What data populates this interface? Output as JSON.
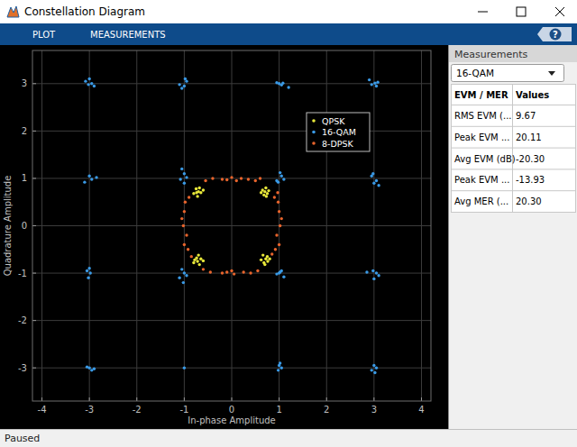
{
  "window": {
    "title": "Constellation Diagram",
    "status": "Paused"
  },
  "toolbar": {
    "tabs": [
      "PLOT",
      "MEASUREMENTS"
    ],
    "help": "?"
  },
  "measurements": {
    "title": "Measurements",
    "selected": "16-QAM",
    "columns": [
      "EVM / MER",
      "Values"
    ],
    "rows": [
      [
        "RMS EVM (...",
        "9.67"
      ],
      [
        "Peak EVM ...",
        "20.11"
      ],
      [
        "Avg EVM (dB)",
        "-20.30"
      ],
      [
        "Peak EVM ...",
        "-13.93"
      ],
      [
        "Avg MER (...",
        "20.30"
      ]
    ]
  },
  "chart_data": {
    "type": "scatter",
    "x_label": "In-phase Amplitude",
    "y_label": "Quadrature Amplitude",
    "xlim": [
      -4.2,
      4.2
    ],
    "ylim": [
      -3.7,
      3.7
    ],
    "xticks": [
      -4,
      -3,
      -2,
      -1,
      0,
      1,
      2,
      3,
      4
    ],
    "yticks": [
      -3,
      -2,
      -1,
      0,
      1,
      2,
      3
    ],
    "grid": true,
    "legend": "upper right",
    "marker": "circle",
    "series": [
      {
        "name": "QPSK",
        "color": "#e8e83a",
        "x": [
          0.7,
          0.65,
          0.75,
          0.72,
          0.68,
          0.78,
          0.62,
          0.73,
          -0.7,
          -0.75,
          -0.65,
          -0.72,
          -0.8,
          -0.68,
          -0.6,
          -0.74,
          0.72,
          0.68,
          0.75,
          0.62,
          0.8,
          0.7,
          0.66,
          0.76,
          -0.72,
          -0.65,
          -0.78,
          -0.7,
          -0.68,
          -0.8,
          -0.6,
          -0.74
        ],
        "values": [
          0.72,
          0.75,
          0.68,
          0.8,
          0.65,
          0.74,
          0.7,
          0.62,
          0.72,
          0.78,
          0.7,
          0.62,
          0.68,
          0.8,
          0.75,
          0.7,
          -0.7,
          -0.78,
          -0.65,
          -0.72,
          -0.7,
          -0.82,
          -0.62,
          -0.75,
          -0.75,
          -0.7,
          -0.72,
          -0.62,
          -0.82,
          -0.78,
          -0.74,
          -0.68
        ]
      },
      {
        "name": "16-QAM",
        "color": "#3a9ae6",
        "x": [
          3.02,
          2.95,
          3.08,
          2.9,
          3.05,
          1.0,
          1.08,
          1.05,
          1.2,
          0.95,
          -0.95,
          -1.0,
          -1.05,
          -0.98,
          -1.1,
          -3.0,
          -3.02,
          -2.95,
          -3.08,
          -2.9,
          2.95,
          3.05,
          3.0,
          3.1,
          2.98,
          1.05,
          1.1,
          0.95,
          1.02,
          0.98,
          -1.0,
          -0.95,
          -1.08,
          -1.0,
          -1.05,
          -3.0,
          -2.95,
          -3.1,
          -2.85,
          2.98,
          3.05,
          3.1,
          2.85,
          3.0,
          1.0,
          1.05,
          0.95,
          1.1,
          1.02,
          -1.0,
          -1.05,
          -0.95,
          -1.1,
          -1.02,
          -3.0,
          -2.98,
          -3.02,
          -3.05,
          3.0,
          2.95,
          3.02,
          3.05,
          1.0,
          1.05,
          0.98,
          1.02,
          -1.0,
          -3.0,
          -2.95,
          -3.05,
          -2.9
        ],
        "values": [
          3.01,
          2.98,
          3.03,
          3.08,
          2.95,
          3.0,
          3.01,
          2.97,
          2.92,
          3.02,
          3.05,
          2.95,
          2.9,
          3.1,
          2.98,
          3.1,
          2.98,
          3.0,
          3.05,
          2.95,
          1.05,
          0.95,
          0.9,
          0.85,
          1.1,
          1.05,
          0.98,
          0.95,
          1.12,
          0.92,
          1.1,
          1.02,
          0.98,
          0.9,
          1.2,
          1.05,
          0.98,
          0.92,
          1.02,
          -0.95,
          -1.0,
          -1.05,
          -0.98,
          -1.12,
          -1.0,
          -0.95,
          -1.02,
          -1.08,
          -0.98,
          -1.0,
          -0.92,
          -1.05,
          -1.1,
          -1.2,
          -0.9,
          -1.0,
          -1.1,
          -0.95,
          -2.95,
          -3.05,
          -3.1,
          -3.0,
          -2.95,
          -3.0,
          -3.05,
          -2.9,
          -3.0,
          -3.0,
          -3.05,
          -2.98,
          -3.02
        ]
      },
      {
        "name": "8-DPSK",
        "color": "#e8642c",
        "x": [
          -0.55,
          -0.4,
          -0.2,
          0.0,
          0.1,
          0.2,
          0.35,
          0.5,
          -0.1,
          0.6,
          -0.6,
          -0.45,
          -0.2,
          0.0,
          0.05,
          0.25,
          0.4,
          0.55,
          -0.1,
          -1.0,
          -0.98,
          -1.02,
          -0.95,
          -1.0,
          -0.9,
          -0.92,
          -1.05,
          -0.85,
          1.0,
          0.98,
          1.02,
          0.95,
          1.0,
          0.9,
          0.92,
          1.05,
          0.85,
          0.97
        ],
        "values": [
          0.95,
          1.0,
          0.98,
          1.02,
          0.95,
          1.0,
          0.98,
          0.95,
          0.97,
          1.0,
          -0.92,
          -0.98,
          -1.0,
          -0.95,
          -1.02,
          -0.98,
          -1.0,
          -0.95,
          -0.98,
          0.3,
          0.5,
          0.0,
          -0.2,
          -0.4,
          0.6,
          -0.5,
          0.15,
          -0.65,
          0.3,
          0.5,
          0.0,
          -0.2,
          -0.4,
          0.6,
          -0.5,
          0.15,
          -0.6,
          0.7
        ]
      }
    ]
  }
}
